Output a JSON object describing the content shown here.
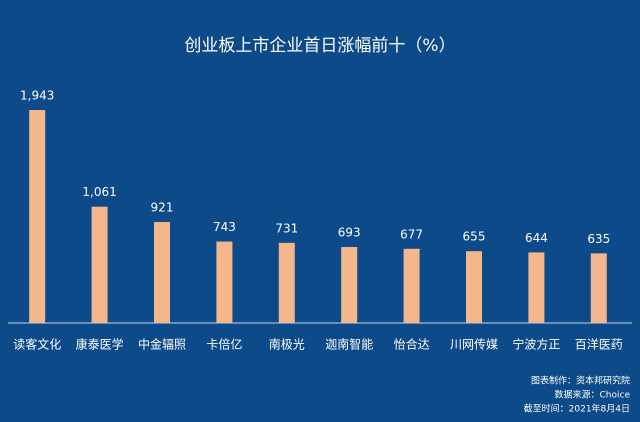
{
  "chart_data": {
    "type": "bar",
    "title": "创业板上市企业首日涨幅前十（%）",
    "categories": [
      "读客文化",
      "康泰医学",
      "中金辐照",
      "卡倍亿",
      "南极光",
      "迦南智能",
      "怡合达",
      "川网传媒",
      "宁波方正",
      "百洋医药"
    ],
    "values": [
      1943,
      1061,
      921,
      743,
      731,
      693,
      677,
      655,
      644,
      635
    ],
    "value_labels": [
      "1,943",
      "1,061",
      "921",
      "743",
      "731",
      "693",
      "677",
      "655",
      "644",
      "635"
    ],
    "color": "#f4b78c",
    "footer": [
      "图表制作：资本邦研究院",
      "数据来源：Choice",
      "截至时间：2021年8月4日"
    ]
  }
}
